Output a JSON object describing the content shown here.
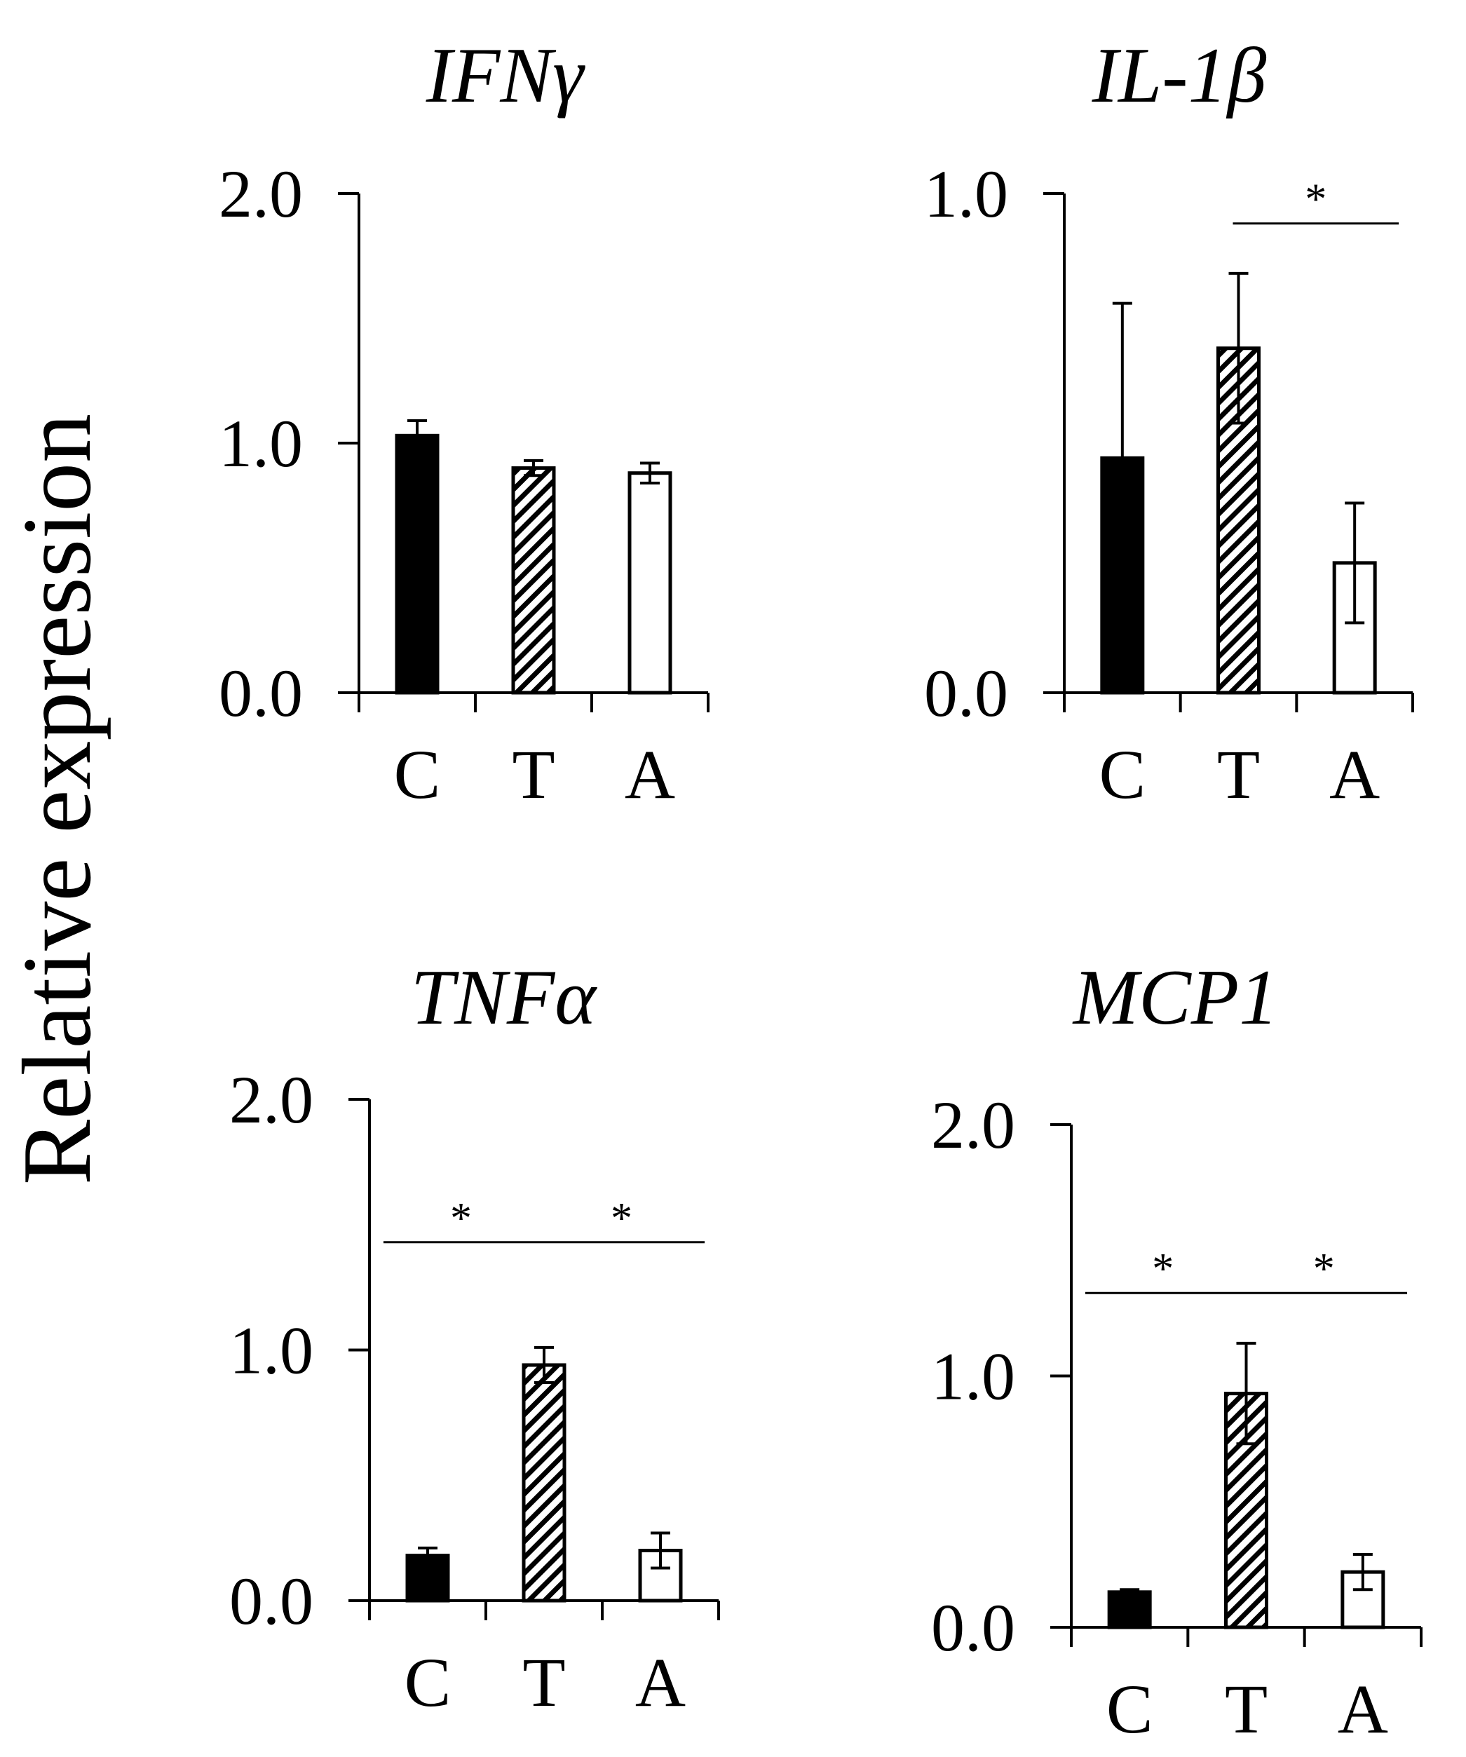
{
  "figure": {
    "ylabel": "Relative expression"
  },
  "colors": {
    "control": "#000000",
    "treated": "#000000",
    "alternative": "#ffffff",
    "stroke": "#000000"
  },
  "chart_data": [
    {
      "type": "bar",
      "title": "IFNγ",
      "categories": [
        "C",
        "T",
        "A"
      ],
      "values": [
        1.03,
        0.9,
        0.88
      ],
      "errors": [
        0.06,
        0.03,
        0.04
      ],
      "yticks": [
        "0.0",
        "1.0",
        "2.0"
      ],
      "ylim": [
        0,
        2.0
      ],
      "significance": []
    },
    {
      "type": "bar",
      "title": "IL-1β",
      "categories": [
        "C",
        "T",
        "A"
      ],
      "values": [
        0.47,
        0.69,
        0.26
      ],
      "errors": [
        0.31,
        0.15,
        0.12
      ],
      "yticks": [
        "0.0",
        "1.0"
      ],
      "ylim": [
        0,
        1.0
      ],
      "significance": [
        {
          "from": 1,
          "to": 2,
          "label": "*",
          "y": 0.94
        }
      ]
    },
    {
      "type": "bar",
      "title": "TNFα",
      "categories": [
        "C",
        "T",
        "A"
      ],
      "values": [
        0.18,
        0.94,
        0.2
      ],
      "errors": [
        0.03,
        0.07,
        0.07
      ],
      "yticks": [
        "0.0",
        "1.0",
        "2.0"
      ],
      "ylim": [
        0,
        2.0
      ],
      "significance": [
        {
          "from": 0,
          "to": 1,
          "label": "*",
          "y": 1.43
        },
        {
          "from": 1,
          "to": 2,
          "label": "*",
          "y": 1.43
        }
      ]
    },
    {
      "type": "bar",
      "title": "MCP1",
      "categories": [
        "C",
        "T",
        "A"
      ],
      "values": [
        0.14,
        0.93,
        0.22
      ],
      "errors": [
        0.01,
        0.2,
        0.07
      ],
      "yticks": [
        "0.0",
        "1.0",
        "2.0"
      ],
      "ylim": [
        0,
        2.0
      ],
      "significance": [
        {
          "from": 0,
          "to": 1,
          "label": "*",
          "y": 1.33
        },
        {
          "from": 1,
          "to": 2,
          "label": "*",
          "y": 1.33
        }
      ]
    }
  ]
}
